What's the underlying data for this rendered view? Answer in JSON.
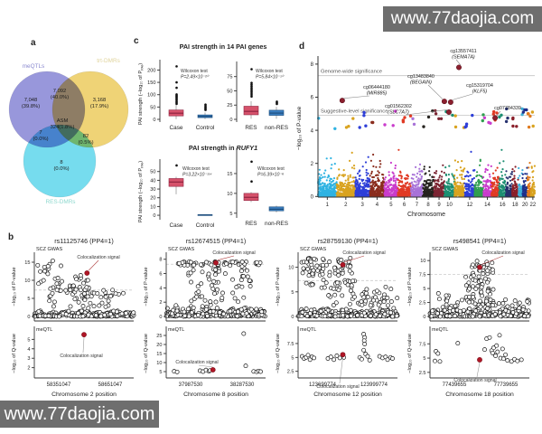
{
  "watermarks": {
    "text": "www.77daojia.com",
    "background": "#6e6e6e",
    "color": "#ffffff"
  },
  "panel_labels": {
    "a": "a",
    "b": "b",
    "c": "c",
    "d": "d"
  },
  "colors": {
    "box_red": "#d6526b",
    "box_red_dark": "#8f2440",
    "box_blue": "#3c7fc0",
    "box_blue_dark": "#1d4e7e",
    "coloc_red": "#b01626",
    "annot_red": "#8c1f2e",
    "dash_gray": "#cccccc"
  },
  "chart_data": [
    {
      "id": "venn",
      "type": "venn",
      "sets": [
        {
          "name": "meQTLs",
          "color": "#7b7ad1",
          "label_color": "#8a89cf"
        },
        {
          "name": "trt-DMRs",
          "color": "#eac74f",
          "label_color": "#e0d49c"
        },
        {
          "name": "RES-DMRs",
          "color": "#4fd2e9",
          "label_color": "#8fd9cf"
        }
      ],
      "regions": {
        "meQTLs_only": "7,048 (39.8%)",
        "meQTLs_trt": "7,092 (40.0%)",
        "trt_only": "3,168 (17.9%)",
        "center": "ASM 324(1.8%)",
        "meQTLs_res": "7 (0.0%)",
        "trt_res": "82 (0.5%)",
        "res_only": "8 (0.0%)"
      }
    },
    {
      "id": "pai_boxplots",
      "type": "boxplot-grid",
      "ylabel": "PAI strength (−log₁₀ of P_PAI_)",
      "row_titles": [
        {
          "prefix": "PAI strength in 14 PAI genes",
          "italic": ""
        },
        {
          "prefix": "PAI strength in ",
          "italic": "RUFY1"
        }
      ],
      "plots": [
        {
          "categories": [
            "Case",
            "Control"
          ],
          "yticks": [
            0,
            50,
            100,
            150,
            200
          ],
          "vmin": 0,
          "vmax": 220,
          "annotation": [
            "Wilcoxon test",
            "P=2.49×10⁻²⁰"
          ],
          "boxes": [
            {
              "lo": 1,
              "q1": 14,
              "med": 25,
              "q3": 38,
              "hi": 58,
              "outliers": [
                63,
                68,
                73,
                79,
                84,
                89,
                93,
                97,
                101,
                128,
                150,
                215
              ],
              "color": "red"
            },
            {
              "lo": 1,
              "q1": 7,
              "med": 12,
              "q3": 18,
              "hi": 28,
              "outliers": [
                38,
                42,
                46,
                50,
                55,
                60
              ],
              "color": "blue"
            }
          ]
        },
        {
          "categories": [
            "RES",
            "non-RES"
          ],
          "yticks": [
            0,
            25,
            50,
            75
          ],
          "vmin": 0,
          "vmax": 92,
          "annotation": [
            "Wilcoxon test",
            "P=5.84×10⁻¹⁰"
          ],
          "boxes": [
            {
              "lo": 1,
              "q1": 8,
              "med": 14,
              "q3": 23,
              "hi": 32,
              "outliers": [
                40,
                43,
                46,
                49,
                52,
                55,
                58,
                61,
                64,
                88
              ],
              "color": "red"
            },
            {
              "lo": 1,
              "q1": 7,
              "med": 11,
              "q3": 16,
              "hi": 22,
              "outliers": [
                27,
                29,
                31
              ],
              "color": "blue"
            }
          ]
        },
        {
          "categories": [
            "Case",
            "Control"
          ],
          "yticks": [
            0,
            10,
            20,
            30,
            40,
            50
          ],
          "vmin": -2,
          "vmax": 58,
          "annotation": [
            "Wilcoxon test",
            "P=3.22×10⁻¹¹⁴"
          ],
          "boxes": [
            {
              "lo": 24,
              "q1": 33,
              "med": 38,
              "q3": 42,
              "hi": 44,
              "outliers": [
                57
              ],
              "color": "red"
            },
            {
              "lo": 0,
              "q1": 0.2,
              "med": 0.4,
              "q3": 0.7,
              "hi": 0.9,
              "outliers": [],
              "color": "blue"
            }
          ]
        },
        {
          "categories": [
            "RES",
            "non-RES"
          ],
          "yticks": [
            5,
            10,
            15
          ],
          "vmin": 4.5,
          "vmax": 20,
          "annotation": [
            "Wilcoxon test",
            "P=6.39×10⁻⁶"
          ],
          "boxes": [
            {
              "lo": 7.8,
              "q1": 8.2,
              "med": 9,
              "q3": 10,
              "hi": 10.3,
              "outliers": [
                13,
                18
              ],
              "color": "red"
            },
            {
              "lo": 5.2,
              "q1": 5.6,
              "med": 6,
              "q3": 6.6,
              "hi": 6.9,
              "outliers": [],
              "color": "blue"
            }
          ]
        }
      ]
    },
    {
      "id": "manhattan",
      "type": "manhattan",
      "xlabel": "Chromosome",
      "ylabel": "−log₁₀ of P-value",
      "yticks": [
        0,
        2,
        4,
        6,
        8
      ],
      "xtick_labels": [
        "1",
        "2",
        "3",
        "4",
        "5",
        "6",
        "7",
        "8",
        "9",
        "10",
        "12",
        "14",
        "16",
        "18",
        "20",
        "22"
      ],
      "thresholds": [
        {
          "label": "Genome-wide significance",
          "value": 7.3
        },
        {
          "label": "Suggestive-level significance",
          "value": 4.9
        }
      ],
      "chrom_colors": [
        "#2fb3e2",
        "#d9a31f",
        "#2e3fd8",
        "#8a2d1e",
        "#c93ccc",
        "#e03a24",
        "#a873d8",
        "#26231f",
        "#7c2533",
        "#1d8f72",
        "#d9a31f",
        "#2e3fd8",
        "#2f9e4f",
        "#c93ccc",
        "#e03a24",
        "#1d8f72",
        "#26316e",
        "#8a1f2a",
        "#3fb0d9",
        "#1e2f8a",
        "#e07a1f",
        "#d9a31f"
      ],
      "annotations": [
        {
          "cpg": "cg13557411",
          "gene": "SEMA7A",
          "chr": 15,
          "value": 7.8,
          "x_frac": 0.65
        },
        {
          "cpg": "cg06444180",
          "gene": "MIR885",
          "chr": 3,
          "value": 5.8,
          "x_frac": 0.112
        },
        {
          "cpg": "cg13483840",
          "gene": "BEGAIN",
          "chr": 14,
          "value": 5.75,
          "x_frac": 0.583
        },
        {
          "cpg": "cg15319704",
          "gene": "KLF5",
          "chr": 13,
          "value": 5.7,
          "x_frac": 0.612
        },
        {
          "cpg": "cg01562302",
          "gene": "SLC7A7",
          "chr": 14,
          "value": 5.1,
          "x_frac": 0.604
        },
        {
          "cpg": "cg07784339",
          "gene": "",
          "chr": 19,
          "value": 4.75,
          "x_frac": 0.817
        }
      ]
    },
    {
      "id": "coloc",
      "type": "colocalization-grid",
      "coloc_label": "Colocalization signal",
      "plots": [
        {
          "title": "rs11125746 (PP4=1)",
          "xlabel": "Chromosome 2 position",
          "xticks": [
            "58351047",
            "58651047"
          ],
          "top": {
            "label": "SCZ GWAS",
            "ylabel": "−log₁₀ of P-value",
            "yticks": [
              0,
              5,
              10,
              15
            ],
            "ymax": 17,
            "dash": 7.3,
            "coloc": {
              "x_frac": 0.53,
              "value": 12
            }
          },
          "bottom": {
            "label": "meQTL",
            "ylabel": "−log₁₀ of Q-value",
            "yticks": [
              2,
              3,
              4,
              5
            ],
            "vmin": 1.2,
            "vmax": 5.8,
            "coloc": {
              "x_frac": 0.5,
              "value": 5.5
            },
            "points": []
          }
        },
        {
          "title": "rs12674515 (PP4=1)",
          "xlabel": "Chromosome 8 position",
          "xticks": [
            "37987530",
            "38287530"
          ],
          "top": {
            "label": "SCZ GWAS",
            "ylabel": "−log₁₀ of P-value",
            "yticks": [
              0,
              2,
              4,
              6,
              8
            ],
            "ymax": 8.6,
            "dash": 7.3,
            "coloc": {
              "x_frac": 0.5,
              "value": 7.5
            }
          },
          "bottom": {
            "label": "meQTL",
            "ylabel": "−log₁₀ of Q-value",
            "yticks": [
              5,
              10,
              15,
              20,
              25
            ],
            "vmin": 3,
            "vmax": 27,
            "coloc": {
              "x_frac": 0.47,
              "value": 6
            },
            "points": [
              [
                0.08,
                5.2
              ],
              [
                0.11,
                4.8
              ],
              [
                0.34,
                5.5
              ],
              [
                0.37,
                5.0
              ],
              [
                0.4,
                5.9
              ],
              [
                0.43,
                5.2
              ],
              [
                0.44,
                5.6
              ],
              [
                0.78,
                26
              ],
              [
                0.8,
                8.2
              ],
              [
                0.88,
                5.1
              ],
              [
                0.91,
                4.9
              ],
              [
                0.93,
                5.3
              ],
              [
                0.95,
                5.0
              ]
            ]
          }
        },
        {
          "title": "rs28759130 (PP4=1)",
          "xlabel": "Chromosome 12 position",
          "xticks": [
            "123699774",
            "123999774"
          ],
          "top": {
            "label": "SCZ GWAS",
            "ylabel": "−log₁₀ of P-value",
            "yticks": [
              0,
              5,
              10
            ],
            "ymax": 12.5,
            "dash": 7.3,
            "coloc": {
              "x_frac": 0.45,
              "value": 10.5
            }
          },
          "bottom": {
            "label": "meQTL",
            "ylabel": "−log₁₀ of Q-value",
            "yticks": [
              2.5,
              5.0,
              7.5
            ],
            "vmin": 1.8,
            "vmax": 9.6,
            "coloc": {
              "x_frac": 0.45,
              "value": 5.5
            },
            "points": [
              [
                0.04,
                5.2
              ],
              [
                0.06,
                4.8
              ],
              [
                0.08,
                5.0
              ],
              [
                0.1,
                5.4
              ],
              [
                0.12,
                4.6
              ],
              [
                0.14,
                5.1
              ],
              [
                0.16,
                4.9
              ],
              [
                0.3,
                4.8
              ],
              [
                0.33,
                5.1
              ],
              [
                0.36,
                4.6
              ],
              [
                0.39,
                5.3
              ],
              [
                0.42,
                4.9
              ],
              [
                0.46,
                5.0
              ],
              [
                0.66,
                9.2
              ],
              [
                0.67,
                8.6
              ],
              [
                0.665,
                8.0
              ],
              [
                0.67,
                7.4
              ],
              [
                0.66,
                6.3
              ],
              [
                0.68,
                5.6
              ],
              [
                0.7,
                5.2
              ],
              [
                0.62,
                5.0
              ],
              [
                0.64,
                4.7
              ],
              [
                0.72,
                4.5
              ],
              [
                0.82,
                5.2
              ],
              [
                0.85,
                4.9
              ],
              [
                0.88,
                5.1
              ],
              [
                0.9,
                4.6
              ],
              [
                0.93,
                5.0
              ],
              [
                0.95,
                4.8
              ]
            ]
          }
        },
        {
          "title": "rs498541 (PP4=1)",
          "xlabel": "Chromosome 18 position",
          "xticks": [
            "77439655",
            "77739655"
          ],
          "top": {
            "label": "SCZ GWAS",
            "ylabel": "−log₁₀ of P-value",
            "yticks": [
              0,
              2.5,
              5.0,
              7.5,
              10.0
            ],
            "ymax": 11,
            "dash": 7.5,
            "coloc": {
              "x_frac": 0.5,
              "value": 8.8
            }
          },
          "bottom": {
            "label": "meQTL",
            "ylabel": "−log₁₀ of Q-value",
            "yticks": [
              2.5,
              5.0,
              7.5
            ],
            "vmin": 2,
            "vmax": 9.6,
            "coloc": {
              "x_frac": 0.5,
              "value": 4.7
            },
            "points": [
              [
                0.05,
                4.5
              ],
              [
                0.06,
                6.2
              ],
              [
                0.08,
                5.8
              ],
              [
                0.1,
                4.4
              ],
              [
                0.28,
                7.6
              ],
              [
                0.55,
                6.5
              ],
              [
                0.57,
                8.4
              ],
              [
                0.6,
                8.6
              ],
              [
                0.62,
                6.3
              ],
              [
                0.63,
                5.9
              ],
              [
                0.64,
                6.8
              ],
              [
                0.66,
                5.4
              ],
              [
                0.67,
                7.2
              ],
              [
                0.68,
                6.1
              ],
              [
                0.7,
                9.0
              ],
              [
                0.71,
                5.0
              ],
              [
                0.73,
                6.6
              ],
              [
                0.74,
                4.9
              ],
              [
                0.76,
                5.6
              ],
              [
                0.78,
                4.6
              ],
              [
                0.82,
                4.4
              ],
              [
                0.85,
                4.8
              ],
              [
                0.88,
                4.5
              ],
              [
                0.92,
                4.7
              ]
            ]
          }
        }
      ]
    }
  ]
}
